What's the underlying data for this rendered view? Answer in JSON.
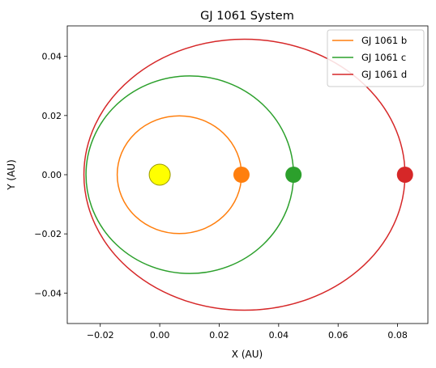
{
  "chart_data": {
    "type": "line",
    "title": "GJ 1061 System",
    "xlabel": "X (AU)",
    "ylabel": "Y (AU)",
    "xlim": [
      -0.0311,
      0.0902
    ],
    "ylim": [
      -0.0503,
      0.0503
    ],
    "xticks": [
      -0.02,
      0.0,
      0.02,
      0.04,
      0.06,
      0.08
    ],
    "xtick_labels": [
      "−0.02",
      "0.00",
      "0.02",
      "0.04",
      "0.06",
      "0.08"
    ],
    "yticks": [
      -0.04,
      -0.02,
      0.0,
      0.02,
      0.04
    ],
    "ytick_labels": [
      "−0.04",
      "−0.02",
      "0.00",
      "0.02",
      "0.04"
    ],
    "grid": false,
    "legend": "top-right",
    "star": {
      "x": 0.0,
      "y": 0.0,
      "color": "#ffff00",
      "edge": "#999900"
    },
    "series": [
      {
        "name": "GJ 1061 b",
        "color": "#ff7f0e",
        "center_x": 0.0066,
        "semi_major": 0.0209,
        "semi_minor": 0.0199,
        "planet_x": 0.0275,
        "planet_y": 0.0
      },
      {
        "name": "GJ 1061 c",
        "color": "#2ca02c",
        "center_x": 0.0101,
        "semi_major": 0.0349,
        "semi_minor": 0.0334,
        "planet_x": 0.045,
        "planet_y": 0.0
      },
      {
        "name": "GJ 1061 d",
        "color": "#d62728",
        "center_x": 0.0285,
        "semi_major": 0.054,
        "semi_minor": 0.0458,
        "planet_x": 0.0825,
        "planet_y": 0.0
      }
    ]
  }
}
